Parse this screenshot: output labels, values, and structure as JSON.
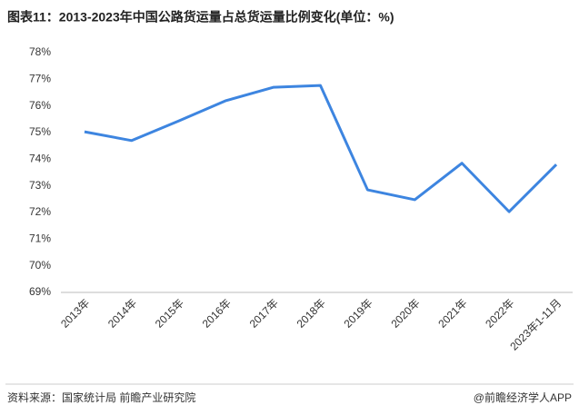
{
  "chart_data": {
    "type": "line",
    "title": "图表11：2013-2023年中国公路货运量占总货运量比例变化(单位：%)",
    "categories": [
      "2013年",
      "2014年",
      "2015年",
      "2016年",
      "2017年",
      "2018年",
      "2019年",
      "2020年",
      "2021年",
      "2022年",
      "2023年1-11月"
    ],
    "series": [
      {
        "color": "#3d85e0",
        "values": [
          75.03,
          74.7,
          75.44,
          76.2,
          76.7,
          76.77,
          72.85,
          72.48,
          73.85,
          72.03,
          73.8
        ]
      }
    ],
    "ylim": [
      69,
      78
    ],
    "yticks": [
      {
        "value": 69,
        "label": "69%"
      },
      {
        "value": 70,
        "label": "70%"
      },
      {
        "value": 71,
        "label": "71%"
      },
      {
        "value": 72,
        "label": "72%"
      },
      {
        "value": 73,
        "label": "73%"
      },
      {
        "value": 74,
        "label": "74%"
      },
      {
        "value": 75,
        "label": "75%"
      },
      {
        "value": 76,
        "label": "76%"
      },
      {
        "value": 77,
        "label": "77%"
      },
      {
        "value": 78,
        "label": "78%"
      }
    ],
    "grid": false
  },
  "footer": {
    "source": "资料来源：国家统计局 前瞻产业研究院",
    "brand": "@前瞻经济学人APP"
  }
}
